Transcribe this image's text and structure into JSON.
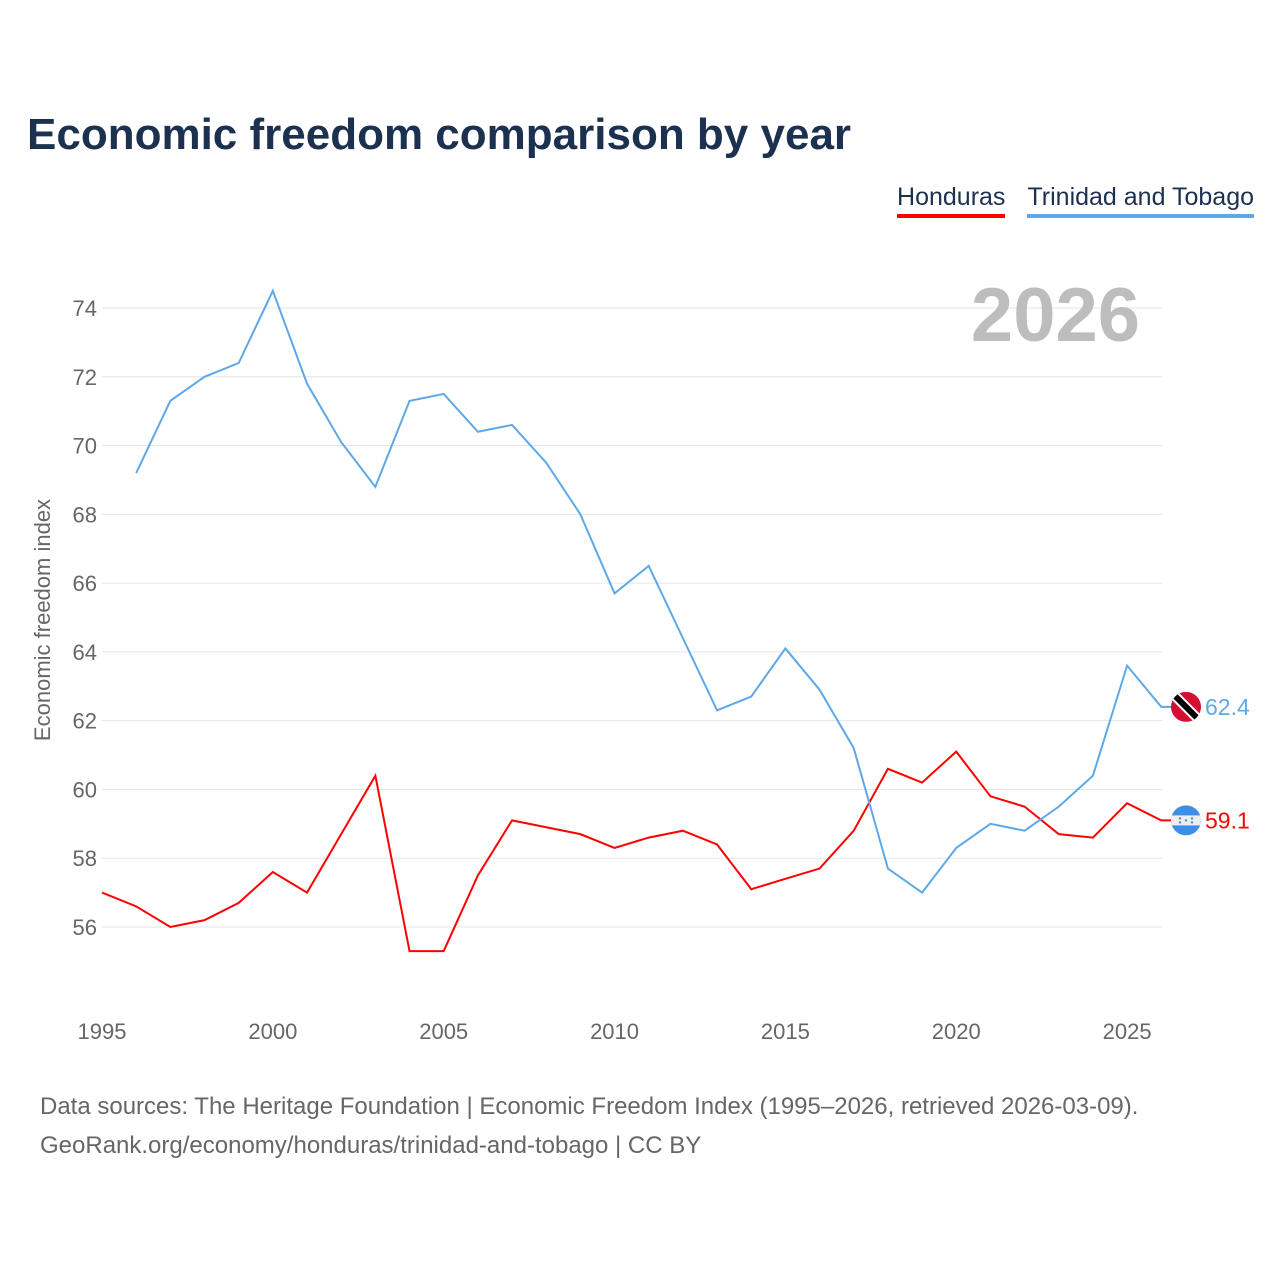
{
  "chart_data": {
    "type": "line",
    "title": "Economic freedom comparison by year",
    "ylabel": "Economic freedom index",
    "xlabel": "",
    "ylim": [
      54,
      75.5
    ],
    "xlim": [
      1995,
      2026
    ],
    "yticks": [
      56,
      58,
      60,
      62,
      64,
      66,
      68,
      70,
      72,
      74
    ],
    "xticks": [
      1995,
      2000,
      2005,
      2010,
      2015,
      2020,
      2025
    ],
    "grid": true,
    "legend_position": "top-right",
    "current_year_label": "2026",
    "series": [
      {
        "name": "Honduras",
        "color": "#ff0000",
        "end_label": "59.1",
        "flag": "honduras-flag",
        "x": [
          1995,
          1996,
          1997,
          1998,
          1999,
          2000,
          2001,
          2002,
          2003,
          2004,
          2005,
          2006,
          2007,
          2008,
          2009,
          2010,
          2011,
          2012,
          2013,
          2014,
          2015,
          2016,
          2017,
          2018,
          2019,
          2020,
          2021,
          2022,
          2023,
          2024,
          2025,
          2026
        ],
        "values": [
          57.0,
          56.6,
          56.0,
          56.2,
          56.7,
          57.6,
          57.0,
          58.7,
          60.4,
          55.3,
          55.3,
          57.5,
          59.1,
          58.9,
          58.7,
          58.3,
          58.6,
          58.8,
          58.4,
          57.1,
          57.4,
          57.7,
          58.8,
          60.6,
          60.2,
          61.1,
          59.8,
          59.5,
          58.7,
          58.6,
          59.6,
          59.1
        ]
      },
      {
        "name": "Trinidad and Tobago",
        "color": "#5ea8e8",
        "end_label": "62.4",
        "flag": "trinidad-and-tobago-flag",
        "x": [
          1996,
          1997,
          1998,
          1999,
          2000,
          2001,
          2002,
          2003,
          2004,
          2005,
          2006,
          2007,
          2008,
          2009,
          2010,
          2011,
          2012,
          2013,
          2014,
          2015,
          2016,
          2017,
          2018,
          2019,
          2020,
          2021,
          2022,
          2023,
          2024,
          2025,
          2026
        ],
        "values": [
          69.2,
          71.3,
          72.0,
          72.4,
          74.5,
          71.8,
          70.1,
          68.8,
          71.3,
          71.5,
          70.4,
          70.6,
          69.5,
          68.0,
          65.7,
          66.5,
          64.4,
          62.3,
          62.7,
          64.1,
          62.9,
          61.2,
          57.7,
          57.0,
          58.3,
          59.0,
          58.8,
          59.5,
          60.4,
          63.6,
          62.4
        ]
      }
    ]
  },
  "source": {
    "line1": "Data sources: The Heritage Foundation | Economic Freedom Index (1995–2026, retrieved 2026-03-09).",
    "line2": "GeoRank.org/economy/honduras/trinidad-and-tobago | CC BY"
  }
}
